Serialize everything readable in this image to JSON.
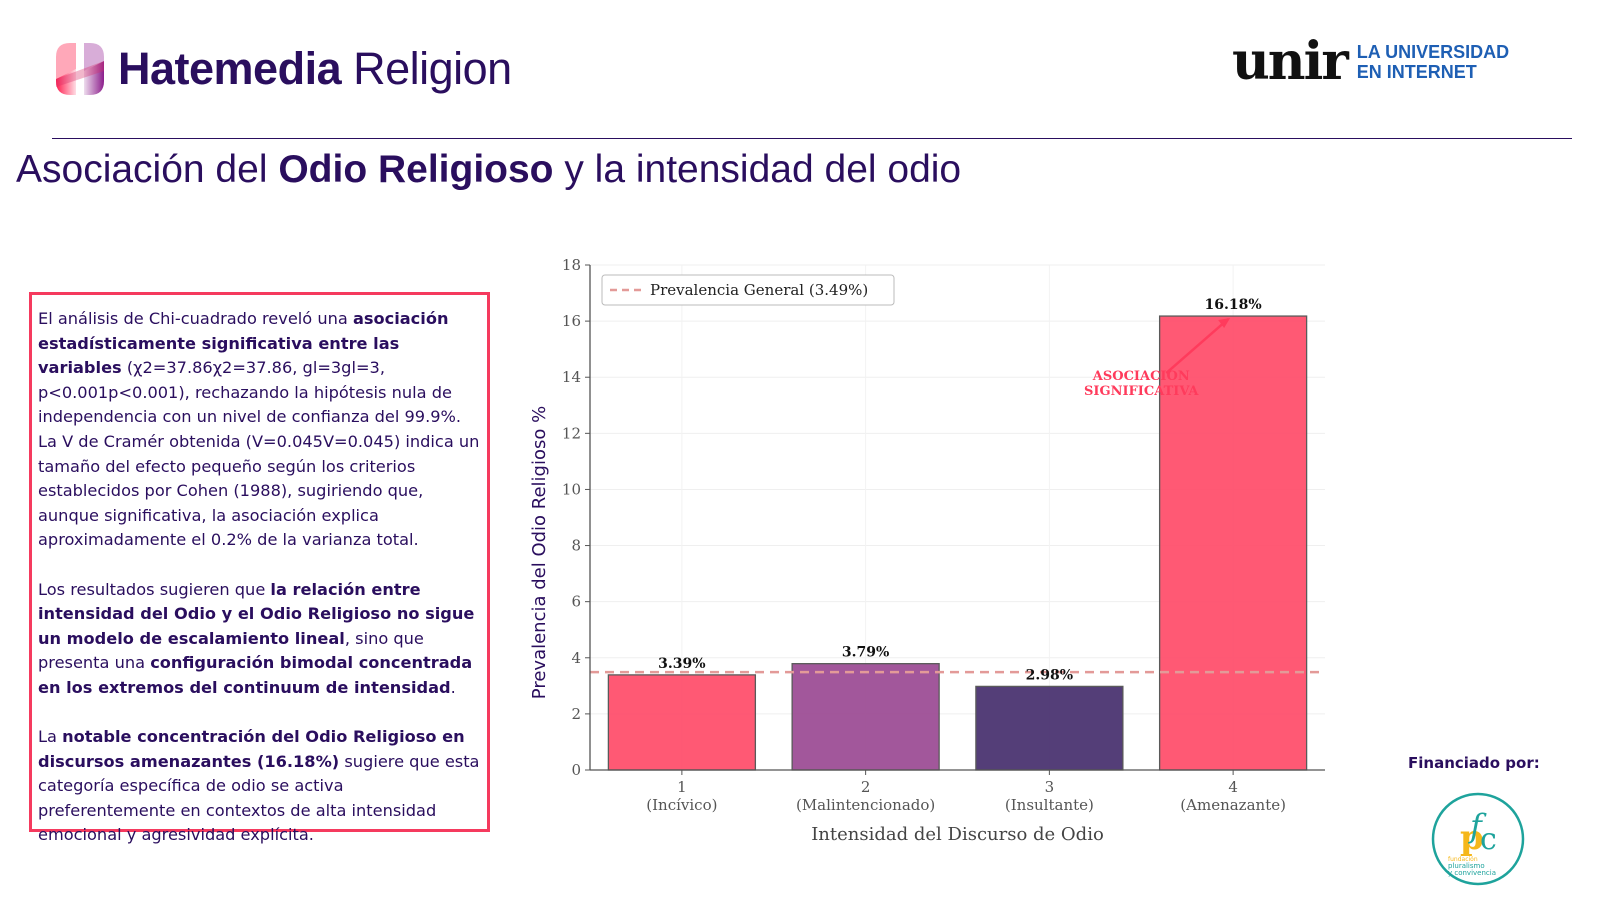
{
  "header": {
    "brand_bold": "Hatemedia",
    "brand_light": "Religion",
    "partner_word": "unir",
    "partner_tag_line1": "LA UNIVERSIDAD",
    "partner_tag_line2": "EN INTERNET"
  },
  "title": {
    "part1": "Asociación del ",
    "part2_bold": "Odio Religioso",
    "part3": " y la intensidad del odio"
  },
  "textbox": {
    "p1_a": "El análisis de Chi-cuadrado reveló una ",
    "p1_b_bold": "asociación estadísticamente significativa entre las variables",
    "p1_c": " (χ2=37.86χ2=37.86, gl=3gl=3, p<0.001p<0.001), rechazando la hipótesis nula de independencia con un nivel de confianza del 99.9%. La V de Cramér obtenida (V=0.045V=0.045) indica un tamaño del efecto pequeño según los criterios establecidos por Cohen (1988), sugiriendo que, aunque significativa, la asociación explica aproximadamente el 0.2% de la varianza total.",
    "p2_a": "Los resultados sugieren que ",
    "p2_b_bold": "la relación entre intensidad del Odio y el Odio Religioso no sigue un modelo de escalamiento lineal",
    "p2_c": ", sino que presenta una ",
    "p2_d_bold": "configuración bimodal concentrada en los extremos del continuum de intensidad",
    "p2_e": ".",
    "p3_a": "La ",
    "p3_b_bold": "notable concentración del Odio Religioso en discursos amenazantes (16.18%)",
    "p3_c": " sugiere que esta categoría específica de odio se activa preferentemente en contextos de alta intensidad emocional y agresividad explícita."
  },
  "funding": {
    "label": "Financiado por:",
    "org_line1": "fundación",
    "org_line2": "pluralismo",
    "org_line3": "y convivencia"
  },
  "colors": {
    "brand_dark": "#2a0e5e",
    "accent_red": "#f53a5e",
    "bar_red": "#ff5470",
    "bar_purple": "#a05298",
    "bar_indigo": "#4f3874",
    "ref_line": "#e39a98",
    "unir_blue": "#1e5fb4"
  },
  "chart_data": {
    "type": "bar",
    "title": "",
    "xlabel": "Intensidad del Discurso de Odio",
    "ylabel": "Prevalencia del Odio Religioso %",
    "categories": [
      "1\n(Incívico)",
      "2\n(Malintencionado)",
      "3\n(Insultante)",
      "4\n(Amenazante)"
    ],
    "category_numbers": [
      "1",
      "2",
      "3",
      "4"
    ],
    "category_names": [
      "(Incívico)",
      "(Malintencionado)",
      "(Insultante)",
      "(Amenazante)"
    ],
    "values": [
      3.39,
      3.79,
      2.98,
      16.18
    ],
    "value_labels": [
      "3.39%",
      "3.79%",
      "2.98%",
      "16.18%"
    ],
    "bar_colors": [
      "#ff5470",
      "#a05298",
      "#4f3874",
      "#ff5470"
    ],
    "ylim": [
      0,
      18
    ],
    "yticks": [
      0,
      2,
      4,
      6,
      8,
      10,
      12,
      14,
      16,
      18
    ],
    "grid": true,
    "reference_line": {
      "value": 3.49,
      "label": "Prevalencia General (3.49%)",
      "style": "dashed"
    },
    "legend": {
      "position": "top-left",
      "entries": [
        "Prevalencia General (3.49%)"
      ]
    },
    "annotation": {
      "text_line1": "ASOCIACIÓN",
      "text_line2": "SIGNIFICATIVA",
      "target_category": "4",
      "target_value": 16.18,
      "text_value": 13.9,
      "text_x_offset_categories": -0.5
    }
  }
}
